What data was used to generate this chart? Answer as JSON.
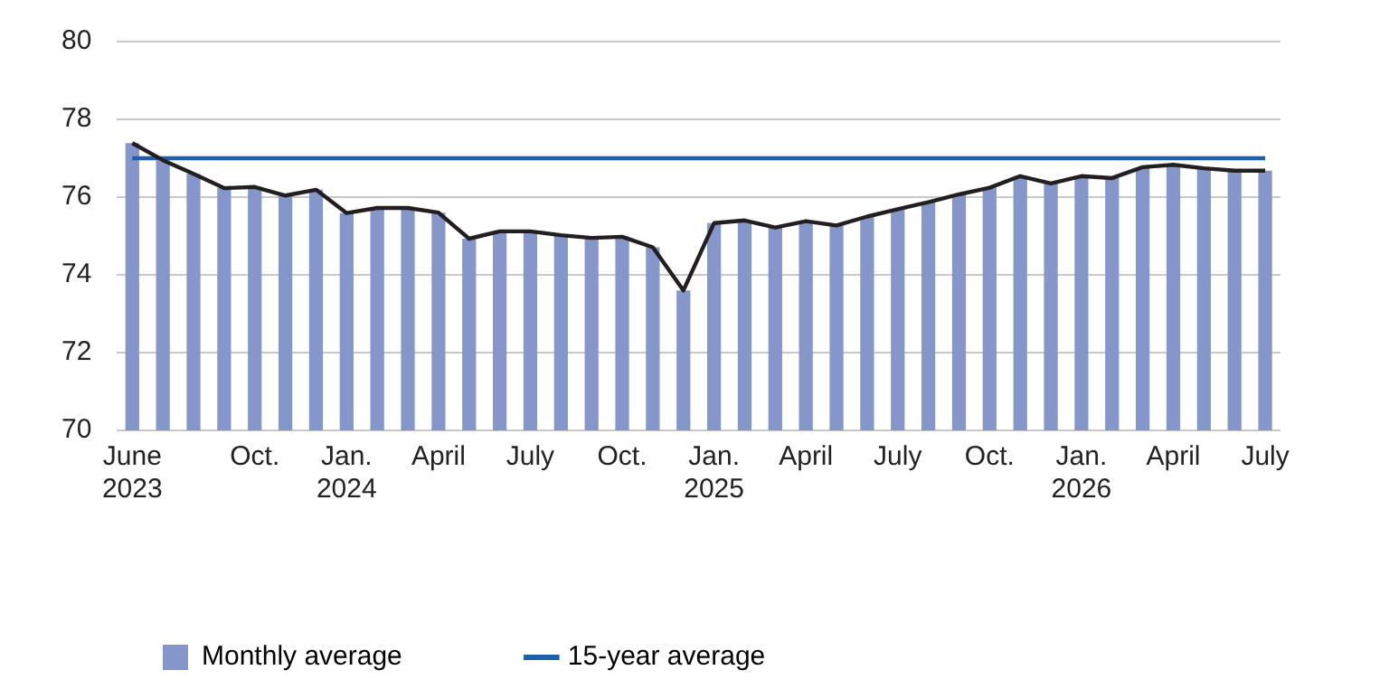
{
  "chart_data": {
    "type": "bar",
    "categories": [
      "June 2023",
      null,
      null,
      null,
      "Oct.",
      null,
      null,
      "Jan. 2024",
      null,
      null,
      "April",
      null,
      null,
      "July",
      null,
      null,
      "Oct.",
      null,
      null,
      "Jan. 2025",
      null,
      null,
      "April",
      null,
      null,
      "July",
      null,
      null,
      "Oct.",
      null,
      null,
      "Jan. 2026",
      null,
      null,
      "April",
      null,
      null,
      "July"
    ],
    "series": [
      {
        "name": "Monthly average",
        "color": "#8596cb",
        "values": [
          77.39,
          76.95,
          76.6,
          76.23,
          76.26,
          76.04,
          76.19,
          75.59,
          75.72,
          75.72,
          75.6,
          74.93,
          75.12,
          75.12,
          75.02,
          74.95,
          74.98,
          74.71,
          73.6,
          75.33,
          75.4,
          75.22,
          75.38,
          75.27,
          75.5,
          75.69,
          75.87,
          76.07,
          76.24,
          76.54,
          76.35,
          76.54,
          76.49,
          76.77,
          76.83,
          76.74,
          76.68,
          76.68
        ]
      },
      {
        "type": "line",
        "color": "#231f20",
        "values": [
          77.39,
          76.95,
          76.6,
          76.23,
          76.26,
          76.04,
          76.19,
          75.59,
          75.72,
          75.72,
          75.6,
          74.93,
          75.12,
          75.12,
          75.02,
          74.95,
          74.98,
          74.71,
          73.6,
          75.33,
          75.4,
          75.22,
          75.38,
          75.27,
          75.5,
          75.69,
          75.87,
          76.07,
          76.24,
          76.54,
          76.35,
          76.54,
          76.49,
          76.77,
          76.83,
          76.74,
          76.68,
          76.68
        ]
      },
      {
        "name": "15-year average",
        "type": "line",
        "color": "#1f5fad",
        "values": [
          77,
          77,
          77,
          77,
          77,
          77,
          77,
          77,
          77,
          77,
          77,
          77,
          77,
          77,
          77,
          77,
          77,
          77,
          77,
          77,
          77,
          77,
          77,
          77,
          77,
          77,
          77,
          77,
          77,
          77,
          77,
          77,
          77,
          77,
          77,
          77,
          77,
          77
        ]
      }
    ],
    "ylim": [
      70,
      80
    ],
    "yticks": [
      70,
      72,
      74,
      76,
      78,
      80
    ],
    "grid": "y",
    "legend": "bottom left",
    "marker": "none"
  }
}
